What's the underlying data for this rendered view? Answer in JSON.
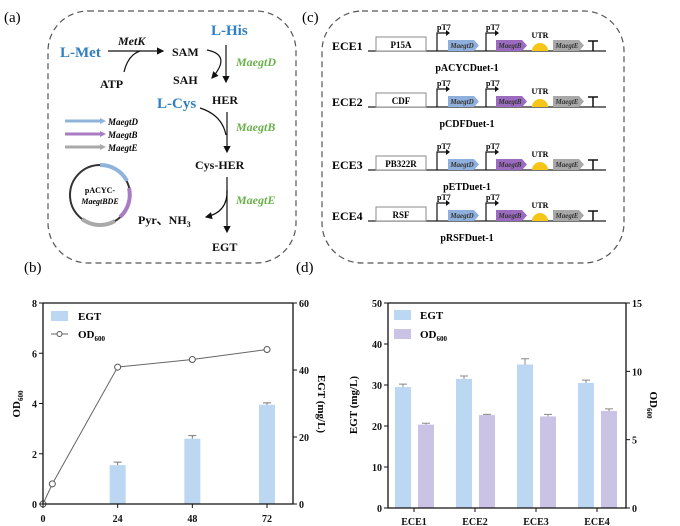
{
  "panel_labels": {
    "a": "(a)",
    "b": "(b)",
    "c": "(c)",
    "d": "(d)"
  },
  "pathway": {
    "l_met": "L-Met",
    "metk": "MetK",
    "atp": "ATP",
    "sam": "SAM",
    "sah": "SAH",
    "l_his": "L-His",
    "maegtd": "MaegtD",
    "her": "HER",
    "l_cys": "L-Cys",
    "maegtb": "MaegtB",
    "cys_her": "Cys-HER",
    "maegte": "MaegtE",
    "pyr": "Pyr、NH",
    "nh3_sub": "3",
    "egt": "EGT",
    "legend": [
      {
        "label": "MaegtD",
        "color": "#8fb4dc"
      },
      {
        "label": "MaegtB",
        "color": "#a77cc4"
      },
      {
        "label": "MaegtE",
        "color": "#a9a9a9"
      }
    ],
    "plasmid_line1": "pACYC-",
    "plasmid_line2": "MaegtBDE"
  },
  "constructs": {
    "promoter": "pT7",
    "utr": "UTR",
    "gene_d": "MaegtD",
    "gene_b": "MaegtB",
    "gene_e": "MaegtE",
    "colors": {
      "gene_d": "#8fb0dd",
      "gene_b": "#9b6bc0",
      "gene_e": "#a8a8a8",
      "utr": "#f5c518"
    },
    "rows": [
      {
        "name": "ECE1",
        "origin": "P15A",
        "plasmid": "pACYCDuet-1"
      },
      {
        "name": "ECE2",
        "origin": "CDF",
        "plasmid": "pCDFDuet-1"
      },
      {
        "name": "ECE3",
        "origin": "PB322R",
        "plasmid": "pETDuet-1"
      },
      {
        "name": "ECE4",
        "origin": "RSF",
        "plasmid": "pRSFDuet-1"
      }
    ]
  },
  "chart_data": [
    {
      "type": "bar+line",
      "x": [
        0,
        24,
        48,
        72
      ],
      "xticks": [
        "0",
        "24",
        "48",
        "72"
      ],
      "ylabel_left": "OD",
      "ylabel_left_sub": "600",
      "ylabel_right": "EGT (mg/L)",
      "ylim_left": [
        0,
        8
      ],
      "yticks_left": [
        "0",
        "2",
        "4",
        "6",
        "8"
      ],
      "ylim_right": [
        0,
        60
      ],
      "yticks_right": [
        "0",
        "20",
        "40",
        "60"
      ],
      "legend": {
        "placement": "top-left",
        "bar": "EGT",
        "line": "OD",
        "line_sub": "600"
      },
      "bars": {
        "name": "EGT",
        "x": [
          24,
          48,
          72
        ],
        "values": [
          11.6,
          19.5,
          29.6
        ],
        "errors": [
          0.9,
          0.9,
          0.6
        ],
        "color": "#bcd7f2"
      },
      "line": {
        "name": "OD600",
        "x": [
          0,
          3,
          24,
          48,
          72
        ],
        "values": [
          0,
          0.8,
          5.45,
          5.75,
          6.15
        ],
        "color": "#666666"
      }
    },
    {
      "type": "bar",
      "categories": [
        "ECE1",
        "ECE2",
        "ECE3",
        "ECE4"
      ],
      "ylabel_left": "EGT (mg/L)",
      "ylabel_right": "OD",
      "ylabel_right_sub": "600",
      "ylim_left": [
        0,
        50
      ],
      "yticks_left": [
        "0",
        "10",
        "20",
        "30",
        "40",
        "50"
      ],
      "ylim_right": [
        0,
        15
      ],
      "yticks_right": [
        "0",
        "5",
        "10",
        "15"
      ],
      "legend": {
        "placement": "top-left"
      },
      "series": [
        {
          "name": "EGT",
          "values": [
            29.5,
            31.5,
            35.0,
            30.5
          ],
          "errors": [
            0.7,
            0.7,
            1.4,
            0.7
          ],
          "axis": "left",
          "color": "#bcd7f2"
        },
        {
          "name": "OD",
          "name_sub": "600",
          "values": [
            6.1,
            6.8,
            6.7,
            7.1
          ],
          "errors": [
            0.1,
            0.05,
            0.15,
            0.15
          ],
          "axis": "right",
          "color": "#cbc3e6"
        }
      ]
    }
  ]
}
